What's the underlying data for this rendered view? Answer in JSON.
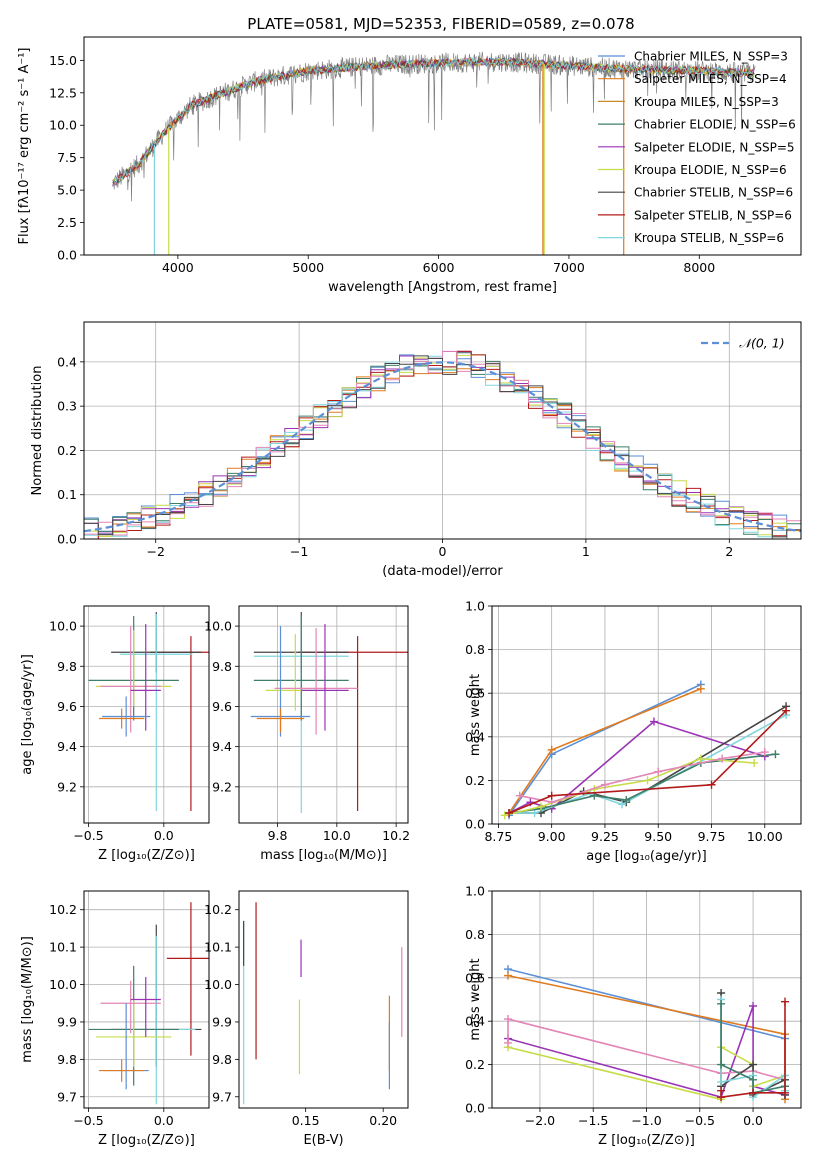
{
  "page_title": "PLATE=0581, MJD=52353, FIBERID=0589, z=0.078",
  "colors": {
    "blue": "#5b8fd6",
    "orange": "#e07b1f",
    "gold": "#c8892a",
    "green": "#3f7f6a",
    "purple": "#9a33b5",
    "yellowgreen": "#c8dc4a",
    "darkgray": "#444444",
    "red": "#b31b1b",
    "cyan": "#7fd6de",
    "pink": "#e386b8",
    "grid": "#b0b0b0"
  },
  "chart_data": [
    {
      "id": "spectrum",
      "type": "line",
      "title": "PLATE=0581, MJD=52353, FIBERID=0589, z=0.078",
      "xlabel": "wavelength [Angstrom, rest frame]",
      "ylabel": "Flux [fλ10⁻¹⁷ erg cm⁻² s⁻¹ A⁻¹]",
      "xlim": [
        3280,
        8780
      ],
      "ylim": [
        0,
        16.8
      ],
      "xticks": [
        4000,
        5000,
        6000,
        7000,
        8000
      ],
      "yticks": [
        0.0,
        2.5,
        5.0,
        7.5,
        10.0,
        12.5,
        15.0
      ],
      "grid": false,
      "legend_position": "top-right",
      "legend": [
        {
          "label": "Chabrier MILES, N_SSP=3",
          "color": "#5b8fd6"
        },
        {
          "label": "Salpeter MILES, N_SSP=4",
          "color": "#e07b1f"
        },
        {
          "label": "Kroupa MILES, N_SSP=3",
          "color": "#c8892a"
        },
        {
          "label": "Chabrier ELODIE, N_SSP=6",
          "color": "#3f7f6a"
        },
        {
          "label": "Salpeter ELODIE, N_SSP=5",
          "color": "#9a33b5"
        },
        {
          "label": "Kroupa ELODIE, N_SSP=6",
          "color": "#c8dc4a"
        },
        {
          "label": "Chabrier STELIB, N_SSP=6",
          "color": "#444444"
        },
        {
          "label": "Salpeter STELIB, N_SSP=6",
          "color": "#b31b1b"
        },
        {
          "label": "Kroupa STELIB, N_SSP=6",
          "color": "#7fd6de"
        }
      ],
      "continuum": {
        "x": [
          3500,
          3700,
          3900,
          4100,
          4300,
          4600,
          5000,
          5500,
          6000,
          6500,
          7000,
          7500,
          8000,
          8400
        ],
        "y": [
          5.5,
          7.0,
          9.5,
          11.5,
          12.3,
          13.4,
          14.2,
          14.6,
          14.8,
          14.9,
          14.6,
          14.3,
          14.2,
          14.0
        ]
      },
      "drops": [
        {
          "x": 3820,
          "y": 0.0,
          "color": "#7fd6de"
        },
        {
          "x": 3930,
          "y": 0.0,
          "color": "#c8dc4a"
        },
        {
          "x": 6800,
          "y": 0.0,
          "color": "#e07b1f"
        },
        {
          "x": 6810,
          "y": 0.0,
          "color": "#c8dc4a"
        },
        {
          "x": 7420,
          "y": 0.0,
          "color": "#e07b1f"
        }
      ]
    },
    {
      "id": "residuals",
      "type": "histogram",
      "xlabel": "(data-model)/error",
      "ylabel": "Normed distribution",
      "xlim": [
        -2.5,
        2.5
      ],
      "ylim": [
        0,
        0.49
      ],
      "xticks": [
        -2,
        -1,
        0,
        1,
        2
      ],
      "yticks": [
        0.0,
        0.1,
        0.2,
        0.3,
        0.4
      ],
      "grid": true,
      "legend_position": "top-right",
      "legend": [
        {
          "label": "𝒩(0, 1)",
          "color": "#5b8fd6",
          "style": "dashed"
        }
      ],
      "bin_width": 0.1,
      "series_colors": [
        "#5b8fd6",
        "#e07b1f",
        "#3f7f6a",
        "#9a33b5",
        "#c8dc4a",
        "#b31b1b",
        "#7fd6de",
        "#e386b8",
        "#444444"
      ]
    },
    {
      "id": "z_vs_age",
      "type": "scatter-errorbar",
      "xlabel": "Z [log₁₀(Z/Z⊙)]",
      "ylabel": "age  [log₁₀(age/yr)]",
      "xlim": [
        -0.53,
        0.3
      ],
      "ylim": [
        9.02,
        10.1
      ],
      "xticks": [
        -0.5,
        0.0
      ],
      "xticklabels": [
        "−0.5",
        "0.0"
      ],
      "yticks": [
        9.2,
        9.4,
        9.6,
        9.8,
        10.0
      ],
      "grid": true,
      "points": [
        {
          "x": 0.18,
          "y": 9.87,
          "xerr": 0.27,
          "yerr_lo": 0.79,
          "yerr_hi": 0.08,
          "color": "#b31b1b"
        },
        {
          "x": -0.05,
          "y": 9.87,
          "xerr": 0.3,
          "yerr_lo": 0.1,
          "yerr_hi": 0.2,
          "color": "#444444"
        },
        {
          "x": -0.05,
          "y": 9.86,
          "xerr": 0.24,
          "yerr_lo": 0.78,
          "yerr_hi": 0.2,
          "color": "#7fd6de"
        },
        {
          "x": -0.2,
          "y": 9.73,
          "xerr": 0.3,
          "yerr_lo": 0.2,
          "yerr_hi": 0.32,
          "color": "#3f7f6a"
        },
        {
          "x": -0.2,
          "y": 9.7,
          "xerr": 0.25,
          "yerr_lo": 0.1,
          "yerr_hi": 0.28,
          "color": "#c8dc4a"
        },
        {
          "x": -0.22,
          "y": 9.7,
          "xerr": 0.2,
          "yerr_lo": 0.23,
          "yerr_hi": 0.3,
          "color": "#e386b8"
        },
        {
          "x": -0.12,
          "y": 9.68,
          "xerr": 0.1,
          "yerr_lo": 0.2,
          "yerr_hi": 0.33,
          "color": "#9a33b5"
        },
        {
          "x": -0.25,
          "y": 9.55,
          "xerr": 0.16,
          "yerr_lo": 0.1,
          "yerr_hi": 0.1,
          "color": "#5b8fd6"
        },
        {
          "x": -0.28,
          "y": 9.54,
          "xerr": 0.15,
          "yerr_lo": 0.05,
          "yerr_hi": 0.05,
          "color": "#e07b1f"
        }
      ]
    },
    {
      "id": "mass_vs_age",
      "type": "scatter-errorbar",
      "xlabel": "mass [log₁₀(M/M⊙)]",
      "ylabel": "",
      "xlim": [
        9.67,
        10.24
      ],
      "ylim": [
        9.02,
        10.1
      ],
      "xticks": [
        9.8,
        10.0,
        10.2
      ],
      "yticks": [
        9.2,
        9.4,
        9.6,
        9.8,
        10.0
      ],
      "grid": true,
      "points": [
        {
          "x": 10.07,
          "y": 9.87,
          "xerr": 0.2,
          "yerr_lo": 0.79,
          "yerr_hi": 0.08,
          "color": "#b31b1b"
        },
        {
          "x": 9.88,
          "y": 9.87,
          "xerr": 0.16,
          "yerr_lo": 0.1,
          "yerr_hi": 0.2,
          "color": "#444444"
        },
        {
          "x": 9.88,
          "y": 9.85,
          "xerr": 0.16,
          "yerr_lo": 0.78,
          "yerr_hi": 0.2,
          "color": "#7fd6de"
        },
        {
          "x": 9.88,
          "y": 9.73,
          "xerr": 0.16,
          "yerr_lo": 0.2,
          "yerr_hi": 0.32,
          "color": "#3f7f6a"
        },
        {
          "x": 9.86,
          "y": 9.68,
          "xerr": 0.1,
          "yerr_lo": 0.1,
          "yerr_hi": 0.28,
          "color": "#c8dc4a"
        },
        {
          "x": 9.93,
          "y": 9.69,
          "xerr": 0.14,
          "yerr_lo": 0.23,
          "yerr_hi": 0.3,
          "color": "#e386b8"
        },
        {
          "x": 9.96,
          "y": 9.68,
          "xerr": 0.08,
          "yerr_lo": 0.2,
          "yerr_hi": 0.33,
          "color": "#9a33b5"
        },
        {
          "x": 9.81,
          "y": 9.55,
          "xerr": 0.1,
          "yerr_lo": 0.1,
          "yerr_hi": 0.45,
          "color": "#5b8fd6"
        },
        {
          "x": 9.81,
          "y": 9.54,
          "xerr": 0.08,
          "yerr_lo": 0.07,
          "yerr_hi": 0.05,
          "color": "#e07b1f"
        }
      ]
    },
    {
      "id": "age_vs_weight",
      "type": "line-markers",
      "xlabel": "age  [log₁₀(age/yr)]",
      "ylabel": "mass weight",
      "xlim": [
        8.72,
        10.17
      ],
      "ylim": [
        0,
        1
      ],
      "xticks": [
        8.75,
        9.0,
        9.25,
        9.5,
        9.75,
        10.0
      ],
      "yticks": [
        0.0,
        0.2,
        0.4,
        0.6,
        0.8,
        1.0
      ],
      "grid": true,
      "series": [
        {
          "color": "#5b8fd6",
          "x": [
            8.8,
            9.0,
            9.7
          ],
          "y": [
            0.04,
            0.32,
            0.64
          ]
        },
        {
          "color": "#e07b1f",
          "x": [
            8.8,
            9.0,
            9.7
          ],
          "y": [
            0.05,
            0.34,
            0.62
          ]
        },
        {
          "color": "#9a33b5",
          "x": [
            8.8,
            8.9,
            9.0,
            9.48,
            10.0
          ],
          "y": [
            0.05,
            0.1,
            0.07,
            0.47,
            0.31
          ]
        },
        {
          "color": "#444444",
          "x": [
            8.8,
            8.95,
            9.15,
            9.35,
            10.1
          ],
          "y": [
            0.05,
            0.05,
            0.15,
            0.1,
            0.54
          ]
        },
        {
          "color": "#7fd6de",
          "x": [
            8.8,
            8.92,
            9.18,
            9.33,
            10.1
          ],
          "y": [
            0.05,
            0.05,
            0.14,
            0.09,
            0.5
          ]
        },
        {
          "color": "#3f7f6a",
          "x": [
            8.8,
            8.95,
            9.2,
            9.35,
            9.7,
            10.05
          ],
          "y": [
            0.05,
            0.07,
            0.13,
            0.11,
            0.28,
            0.32
          ]
        },
        {
          "color": "#c8dc4a",
          "x": [
            8.78,
            8.95,
            9.2,
            9.45,
            9.7,
            9.95
          ],
          "y": [
            0.04,
            0.08,
            0.16,
            0.2,
            0.3,
            0.28
          ]
        },
        {
          "color": "#e386b8",
          "x": [
            8.85,
            9.0,
            9.25,
            9.5,
            9.8,
            10.0
          ],
          "y": [
            0.13,
            0.1,
            0.18,
            0.24,
            0.3,
            0.33
          ]
        },
        {
          "color": "#b31b1b",
          "x": [
            8.8,
            9.0,
            9.75,
            10.1
          ],
          "y": [
            0.05,
            0.13,
            0.18,
            0.52
          ]
        }
      ]
    },
    {
      "id": "z_vs_mass",
      "type": "scatter-errorbar",
      "xlabel": "Z [log₁₀(Z/Z⊙)]",
      "ylabel": "mass [log₁₀(M/M⊙)]",
      "xlim": [
        -0.53,
        0.3
      ],
      "ylim": [
        9.67,
        10.25
      ],
      "xticks": [
        -0.5,
        0.0
      ],
      "xticklabels": [
        "−0.5",
        "0.0"
      ],
      "yticks": [
        9.7,
        9.8,
        9.9,
        10.0,
        10.1,
        10.2
      ],
      "grid": true,
      "points": [
        {
          "x": 0.18,
          "y": 10.07,
          "xerr": 0.16,
          "yerr_lo": 0.26,
          "yerr_hi": 0.15,
          "color": "#b31b1b"
        },
        {
          "x": -0.05,
          "y": 9.88,
          "xerr": 0.3,
          "yerr_lo": 0.1,
          "yerr_hi": 0.28,
          "color": "#444444"
        },
        {
          "x": -0.05,
          "y": 9.88,
          "xerr": 0.26,
          "yerr_lo": 0.2,
          "yerr_hi": 0.25,
          "color": "#7fd6de"
        },
        {
          "x": -0.2,
          "y": 9.88,
          "xerr": 0.3,
          "yerr_lo": 0.15,
          "yerr_hi": 0.17,
          "color": "#3f7f6a"
        },
        {
          "x": -0.2,
          "y": 9.86,
          "xerr": 0.25,
          "yerr_lo": 0.08,
          "yerr_hi": 0.1,
          "color": "#c8dc4a"
        },
        {
          "x": -0.22,
          "y": 9.95,
          "xerr": 0.2,
          "yerr_lo": 0.08,
          "yerr_hi": 0.06,
          "color": "#e386b8"
        },
        {
          "x": -0.12,
          "y": 9.96,
          "xerr": 0.1,
          "yerr_lo": 0.1,
          "yerr_hi": 0.06,
          "color": "#9a33b5"
        },
        {
          "x": -0.25,
          "y": 9.77,
          "xerr": 0.15,
          "yerr_lo": 0.05,
          "yerr_hi": 0.18,
          "color": "#5b8fd6"
        },
        {
          "x": -0.28,
          "y": 9.77,
          "xerr": 0.15,
          "yerr_lo": 0.03,
          "yerr_hi": 0.03,
          "color": "#e07b1f"
        }
      ]
    },
    {
      "id": "ebv_vs_mass",
      "type": "errorbar",
      "xlabel": "E(B-V)",
      "ylabel": "",
      "xlim": [
        0.107,
        0.216
      ],
      "ylim": [
        9.67,
        10.25
      ],
      "xticks": [
        0.15,
        0.2
      ],
      "yticks": [
        9.7,
        9.8,
        9.9,
        10.0,
        10.1,
        10.2
      ],
      "grid": false,
      "points": [
        {
          "x": 0.11,
          "y": 9.9,
          "yerr_lo": 0.22,
          "yerr_hi": 0.27,
          "color": "#7fd6de"
        },
        {
          "x": 0.11,
          "y": 10.1,
          "yerr_lo": 0.05,
          "yerr_hi": 0.07,
          "color": "#444444"
        },
        {
          "x": 0.118,
          "y": 10.0,
          "yerr_lo": 0.2,
          "yerr_hi": 0.22,
          "color": "#b31b1b"
        },
        {
          "x": 0.146,
          "y": 9.9,
          "yerr_lo": 0.14,
          "yerr_hi": 0.06,
          "color": "#c8dc4a"
        },
        {
          "x": 0.147,
          "y": 10.06,
          "yerr_lo": 0.04,
          "yerr_hi": 0.06,
          "color": "#9a33b5"
        },
        {
          "x": 0.204,
          "y": 9.85,
          "yerr_lo": 0.08,
          "yerr_hi": 0.12,
          "color": "#e07b1f"
        },
        {
          "x": 0.204,
          "y": 9.83,
          "yerr_lo": 0.11,
          "yerr_hi": 0.07,
          "color": "#5b8fd6"
        },
        {
          "x": 0.212,
          "y": 9.98,
          "yerr_lo": 0.12,
          "yerr_hi": 0.12,
          "color": "#e386b8"
        }
      ]
    },
    {
      "id": "z_vs_weight",
      "type": "line-markers",
      "xlabel": "Z [log₁₀(Z/Z⊙)]",
      "ylabel": "mass weight",
      "xlim": [
        -2.45,
        0.45
      ],
      "ylim": [
        0,
        1
      ],
      "xticks": [
        -2.0,
        -1.5,
        -1.0,
        -0.5,
        0.0
      ],
      "xticklabels": [
        "−2.0",
        "−1.5",
        "−1.0",
        "−0.5",
        "0.0"
      ],
      "yticks": [
        0.0,
        0.2,
        0.4,
        0.6,
        0.8,
        1.0
      ],
      "grid": true,
      "series": [
        {
          "color": "#5b8fd6",
          "x": [
            -2.3,
            0.3,
            0.3
          ],
          "y": [
            0.64,
            0.32,
            0.1
          ]
        },
        {
          "color": "#e07b1f",
          "x": [
            -2.3,
            0.3,
            0.3
          ],
          "y": [
            0.61,
            0.34,
            0.04
          ]
        },
        {
          "color": "#9a33b5",
          "x": [
            -2.3,
            -0.3,
            0.0,
            0.0,
            0.3
          ],
          "y": [
            0.32,
            0.05,
            0.47,
            0.1,
            0.06
          ]
        },
        {
          "color": "#c8dc4a",
          "x": [
            -2.3,
            -0.3,
            -0.3,
            0.0,
            0.0,
            0.3
          ],
          "y": [
            0.28,
            0.04,
            0.28,
            0.2,
            0.1,
            0.15
          ]
        },
        {
          "color": "#e386b8",
          "x": [
            -2.3,
            -2.3,
            -0.3,
            0.0,
            0.3
          ],
          "y": [
            0.3,
            0.41,
            0.16,
            0.17,
            0.13
          ]
        },
        {
          "color": "#444444",
          "x": [
            -0.3,
            -0.3,
            0.0,
            0.0,
            0.3,
            0.3
          ],
          "y": [
            0.53,
            0.1,
            0.2,
            0.06,
            0.13,
            0.06
          ]
        },
        {
          "color": "#7fd6de",
          "x": [
            -0.3,
            -0.3,
            0.0,
            0.0,
            0.3,
            0.3
          ],
          "y": [
            0.5,
            0.12,
            0.15,
            0.05,
            0.15,
            0.08
          ]
        },
        {
          "color": "#3f7f6a",
          "x": [
            -0.3,
            -0.3,
            0.0,
            0.0,
            0.3
          ],
          "y": [
            0.48,
            0.2,
            0.13,
            0.07,
            0.1
          ]
        },
        {
          "color": "#b31b1b",
          "x": [
            -0.3,
            -0.3,
            0.0,
            0.3,
            0.3
          ],
          "y": [
            0.08,
            0.05,
            0.07,
            0.07,
            0.49
          ]
        }
      ]
    }
  ]
}
